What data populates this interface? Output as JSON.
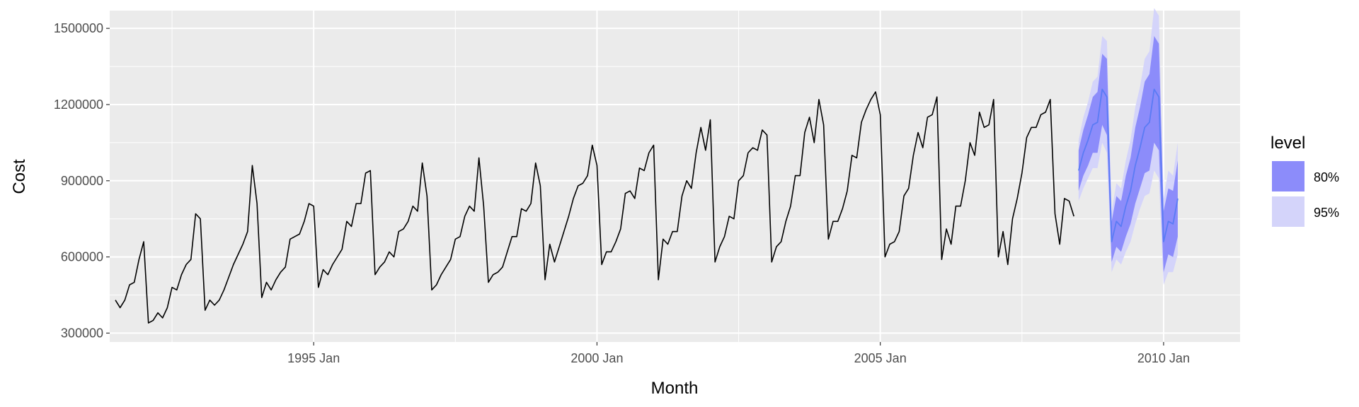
{
  "chart_data": {
    "type": "line",
    "title": "",
    "xlabel": "Month",
    "ylabel": "Cost",
    "xlim": [
      1991.4,
      2011.35
    ],
    "ylim": [
      265000,
      1570000
    ],
    "y_ticks": [
      300000,
      600000,
      900000,
      1200000,
      1500000
    ],
    "y_tick_labels": [
      "300000",
      "600000",
      "900000",
      "1200000",
      "1500000"
    ],
    "x_ticks": [
      1995,
      2000,
      2005,
      2010
    ],
    "x_tick_labels": [
      "1995 Jan",
      "2000 Jan",
      "2005 Jan",
      "2010 Jan"
    ],
    "grid": true,
    "legend": {
      "title": "level",
      "position": "right",
      "items": [
        {
          "label": "80%",
          "color": "#8c8cfa"
        },
        {
          "label": "95%",
          "color": "#d4d4fa"
        }
      ]
    },
    "colors": {
      "panel": "#ebebeb",
      "grid": "#ffffff",
      "history": "#000000",
      "forecast": "#5a7bf5",
      "band80": "#8c8cfa",
      "band95": "#d4d4fa"
    },
    "series": [
      {
        "role": "history",
        "start": "1991-07",
        "frequency": "monthly",
        "values": [
          430000,
          400000,
          430000,
          490000,
          500000,
          590000,
          660000,
          340000,
          350000,
          380000,
          360000,
          400000,
          480000,
          470000,
          530000,
          570000,
          590000,
          770000,
          750000,
          390000,
          430000,
          410000,
          430000,
          470000,
          520000,
          570000,
          610000,
          650000,
          700000,
          960000,
          810000,
          440000,
          500000,
          470000,
          510000,
          540000,
          560000,
          670000,
          680000,
          690000,
          740000,
          810000,
          800000,
          480000,
          550000,
          530000,
          570000,
          600000,
          630000,
          740000,
          720000,
          810000,
          810000,
          930000,
          940000,
          530000,
          560000,
          580000,
          620000,
          600000,
          700000,
          710000,
          740000,
          800000,
          780000,
          970000,
          840000,
          470000,
          490000,
          530000,
          560000,
          590000,
          670000,
          680000,
          760000,
          800000,
          780000,
          990000,
          800000,
          500000,
          530000,
          540000,
          560000,
          620000,
          680000,
          680000,
          790000,
          780000,
          810000,
          970000,
          880000,
          510000,
          650000,
          580000,
          640000,
          700000,
          760000,
          830000,
          880000,
          890000,
          920000,
          1040000,
          960000,
          570000,
          620000,
          620000,
          660000,
          710000,
          850000,
          860000,
          830000,
          950000,
          940000,
          1010000,
          1040000,
          510000,
          670000,
          650000,
          700000,
          700000,
          840000,
          900000,
          870000,
          1010000,
          1110000,
          1020000,
          1140000,
          580000,
          640000,
          680000,
          760000,
          750000,
          900000,
          920000,
          1010000,
          1030000,
          1020000,
          1100000,
          1080000,
          580000,
          640000,
          660000,
          740000,
          800000,
          920000,
          920000,
          1090000,
          1150000,
          1050000,
          1220000,
          1120000,
          670000,
          740000,
          740000,
          790000,
          860000,
          1000000,
          990000,
          1130000,
          1180000,
          1220000,
          1250000,
          1160000,
          600000,
          650000,
          660000,
          700000,
          840000,
          870000,
          1000000,
          1090000,
          1030000,
          1150000,
          1160000,
          1230000,
          590000,
          710000,
          650000,
          800000,
          800000,
          900000,
          1050000,
          1000000,
          1170000,
          1110000,
          1120000,
          1220000,
          600000,
          700000,
          570000,
          750000,
          830000,
          930000,
          1070000,
          1110000,
          1110000,
          1160000,
          1170000,
          1220000,
          770000,
          650000,
          830000,
          820000,
          760000
        ]
      },
      {
        "role": "forecast",
        "name": "",
        "start": "2008-07",
        "frequency": "monthly",
        "values": [
          940000,
          1010000,
          1060000,
          1120000,
          1130000,
          1260000,
          1230000,
          660000,
          740000,
          720000,
          800000,
          860000,
          960000,
          1030000,
          1110000,
          1130000,
          1260000,
          1230000,
          660000,
          740000,
          730000,
          830000
        ],
        "lo80": [
          860000,
          920000,
          960000,
          1010000,
          1010000,
          1120000,
          1080000,
          580000,
          640000,
          620000,
          680000,
          730000,
          810000,
          870000,
          930000,
          940000,
          1050000,
          1020000,
          540000,
          610000,
          600000,
          680000
        ],
        "hi80": [
          1020000,
          1100000,
          1160000,
          1230000,
          1250000,
          1400000,
          1380000,
          740000,
          840000,
          820000,
          920000,
          990000,
          1110000,
          1190000,
          1290000,
          1320000,
          1470000,
          1440000,
          780000,
          870000,
          860000,
          980000
        ],
        "lo95": [
          820000,
          870000,
          910000,
          950000,
          950000,
          1050000,
          1010000,
          540000,
          590000,
          570000,
          620000,
          660000,
          730000,
          790000,
          840000,
          850000,
          940000,
          910000,
          490000,
          540000,
          540000,
          610000
        ],
        "hi95": [
          1060000,
          1150000,
          1210000,
          1290000,
          1310000,
          1470000,
          1450000,
          780000,
          890000,
          870000,
          980000,
          1060000,
          1190000,
          1270000,
          1380000,
          1410000,
          1580000,
          1550000,
          830000,
          940000,
          920000,
          1050000
        ]
      }
    ]
  }
}
